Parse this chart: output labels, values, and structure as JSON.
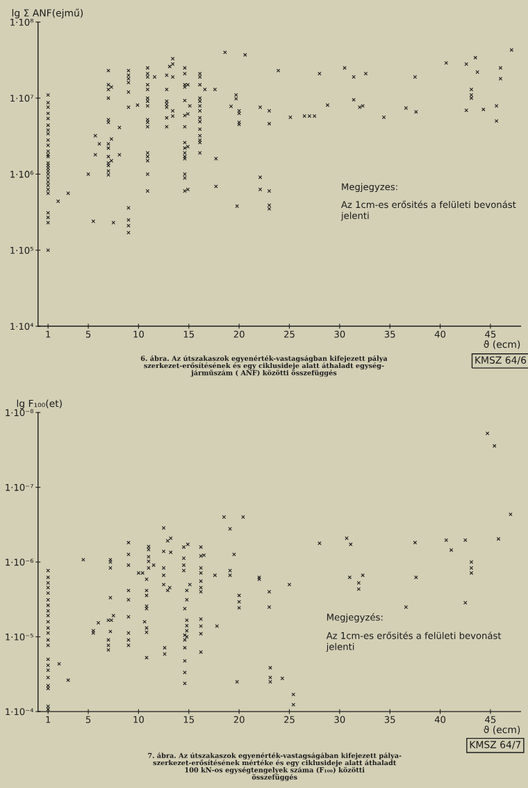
{
  "chart_data": [
    {
      "type": "scatter",
      "xlabel": "ϑ (ecm)",
      "ylabel": "lg Σ ANF(ejmű)",
      "color": "#1c1c1c",
      "marker": "cross",
      "log": true,
      "xlim": [
        0,
        48
      ],
      "xticks": [
        1,
        5,
        10,
        15,
        20,
        25,
        30,
        35,
        40,
        45
      ],
      "ylim": [
        10000,
        100000000
      ],
      "yticks": [
        {
          "value": 10000,
          "label": "1·10⁴"
        },
        {
          "value": 100000,
          "label": "1·10⁵"
        },
        {
          "value": 1000000,
          "label": "1·10⁶"
        },
        {
          "value": 10000000,
          "label": "1·10⁷"
        },
        {
          "value": 100000000,
          "label": "1·10⁸"
        }
      ],
      "x": [
        1,
        1,
        1,
        1,
        1,
        1,
        1,
        1,
        1,
        1,
        1,
        1,
        1,
        1,
        1,
        1,
        1,
        1,
        1,
        1,
        1,
        1,
        1,
        1,
        1,
        1,
        1,
        2,
        3,
        5,
        5.5,
        5.7,
        5.7,
        6.1,
        7,
        7,
        7,
        7,
        7,
        7,
        7,
        7,
        7,
        7,
        7,
        7,
        7,
        7.3,
        7.3,
        7.3,
        7.5,
        8.1,
        8.1,
        9,
        9,
        9,
        9,
        9,
        9,
        9,
        9,
        9,
        9,
        9.9,
        10.9,
        10.9,
        10.9,
        10.9,
        10.9,
        10.9,
        10.9,
        10.9,
        10.9,
        10.9,
        10.9,
        10.9,
        10.9,
        10.9,
        10.9,
        10.9,
        11.6,
        12.8,
        12.8,
        12.8,
        12.8,
        12.8,
        12.8,
        12.8,
        13.1,
        13.4,
        13.4,
        13.4,
        13.4,
        13.4,
        14.6,
        14.6,
        14.6,
        14.6,
        14.6,
        14.6,
        14.6,
        14.6,
        14.6,
        14.6,
        14.6,
        14.6,
        14.6,
        14.6,
        14.6,
        14.9,
        14.9,
        14.9,
        14.9,
        15.1,
        16.1,
        16.1,
        16.1,
        16.1,
        16.1,
        16.1,
        16.1,
        16.1,
        16.1,
        16.1,
        16.1,
        16.1,
        16.1,
        16.1,
        16.6,
        17.6,
        17.7,
        17.7,
        18.6,
        19.2,
        19.7,
        19.7,
        19.8,
        20,
        20,
        20,
        20,
        20.6,
        22.1,
        22.1,
        22.1,
        23,
        23,
        23,
        23,
        23,
        23.9,
        25.1,
        26.5,
        27,
        27.5,
        28,
        28.8,
        30.5,
        31.4,
        31.4,
        32,
        32.3,
        32.6,
        34.4,
        36.6,
        37.5,
        37.6,
        40.6,
        42.6,
        42.6,
        43.1,
        43.1,
        43.1,
        43.5,
        43.7,
        44.3,
        45.6,
        45.6,
        46,
        46,
        47.1
      ],
      "values": [
        11000000.0,
        8700000.0,
        7600000.0,
        6300000.0,
        5400000.0,
        4400000.0,
        3800000.0,
        3400000.0,
        2800000.0,
        2400000.0,
        2000000.0,
        1800000.0,
        1700000.0,
        1400000.0,
        1300000.0,
        1200000.0,
        1100000.0,
        1000000.0,
        890000.0,
        790000.0,
        710000.0,
        630000.0,
        560000.0,
        310000.0,
        270000.0,
        230000.0,
        100000.0,
        440000.0,
        560000.0,
        1000000.0,
        240000.0,
        3200000.0,
        1800000.0,
        2500000.0,
        23000000.0,
        15000000.0,
        13000000.0,
        10000000.0,
        5200000.0,
        4800000.0,
        2500000.0,
        2200000.0,
        1700000.0,
        1400000.0,
        1300000.0,
        1100000.0,
        980000.0,
        14000000.0,
        2900000.0,
        1500000.0,
        230000.0,
        4100000.0,
        1800000.0,
        23000000.0,
        20000000.0,
        18000000.0,
        16000000.0,
        12000000.0,
        7600000.0,
        360000.0,
        250000.0,
        210000.0,
        170000.0,
        8100000.0,
        25000000.0,
        21000000.0,
        19000000.0,
        15000000.0,
        13000000.0,
        10000000.0,
        9100000.0,
        7900000.0,
        5200000.0,
        4800000.0,
        4200000.0,
        1900000.0,
        1700000.0,
        1500000.0,
        1000000.0,
        600000.0,
        19000000.0,
        20000000.0,
        13000000.0,
        9100000.0,
        8300000.0,
        7600000.0,
        5500000.0,
        4200000.0,
        26000000.0,
        33000000.0,
        28000000.0,
        19000000.0,
        6800000.0,
        5800000.0,
        25000000.0,
        21000000.0,
        15000000.0,
        14000000.0,
        9300000.0,
        5900000.0,
        4200000.0,
        2600000.0,
        2200000.0,
        1900000.0,
        1700000.0,
        1600000.0,
        1000000.0,
        890000.0,
        600000.0,
        15000000.0,
        6200000.0,
        2300000.0,
        630000.0,
        7900000.0,
        21000000.0,
        19000000.0,
        15000000.0,
        10000000.0,
        9100000.0,
        7900000.0,
        6800000.0,
        5500000.0,
        4900000.0,
        3900000.0,
        3200000.0,
        2800000.0,
        2600000.0,
        1900000.0,
        13000000.0,
        13000000.0,
        1600000.0,
        690000.0,
        40000000.0,
        7800000.0,
        11000000.0,
        9800000.0,
        380000.0,
        6800000.0,
        6300000.0,
        4800000.0,
        4500000.0,
        37000000.0,
        7600000.0,
        910000.0,
        630000.0,
        6800000.0,
        4600000.0,
        600000.0,
        390000.0,
        350000.0,
        23000000.0,
        5600000.0,
        5800000.0,
        5800000.0,
        5800000.0,
        21000000.0,
        8100000.0,
        25000000.0,
        19000000.0,
        9500000.0,
        7600000.0,
        7900000.0,
        21000000.0,
        5600000.0,
        7400000.0,
        19000000.0,
        6600000.0,
        29000000.0,
        28000000.0,
        6900000.0,
        13000000.0,
        11000000.0,
        10000000.0,
        34000000.0,
        22000000.0,
        7100000.0,
        7900000.0,
        5000000.0,
        25000000.0,
        18000000.0,
        43000000.0
      ],
      "annotations": [
        "Megjegyzes:",
        "Az 1cm-es erősités a felületi bevonást\njelenti",
        "KMSZ 64/6",
        "6. ábra. Az útszakaszok egyenérték-vastagságban kifejezett pálya\nszerkezet-erősítésének és egy ciklusideje alatt áthaladt egység-\njárműszám ( ANF) közötti összefüggés"
      ]
    },
    {
      "type": "scatter",
      "xlabel": "ϑ (ecm)",
      "ylabel": "lg F₁₀₀(et)",
      "color": "#1c1c1c",
      "marker": "cross",
      "log": true,
      "xlim": [
        0,
        48
      ],
      "xticks": [
        1,
        5,
        10,
        15,
        20,
        25,
        30,
        35,
        40,
        45
      ],
      "ylim": [
        0.0001,
        1e-08
      ],
      "yticks": [
        {
          "value": 0.0001,
          "label": "1·10⁻⁴"
        },
        {
          "value": 1e-05,
          "label": "1·10⁻⁵"
        },
        {
          "value": 1e-06,
          "label": "1·10⁻⁶"
        },
        {
          "value": 1e-07,
          "label": "1·10⁻⁷"
        },
        {
          "value": 1e-08,
          "label": "1·10⁻⁸"
        }
      ],
      "x": [
        1,
        1,
        1,
        1,
        1,
        1,
        1,
        1,
        1,
        1,
        1,
        1,
        1,
        1,
        1,
        1,
        1,
        1,
        1,
        1,
        1,
        1,
        2.1,
        3,
        4.5,
        5.5,
        5.5,
        6,
        7,
        7,
        7,
        7,
        7.2,
        7.2,
        7.2,
        7.2,
        7.2,
        7.3,
        7.5,
        9,
        9,
        9,
        9,
        9,
        9,
        9,
        9,
        9,
        10,
        10.4,
        10.6,
        10.8,
        10.8,
        10.8,
        10.8,
        10.8,
        10.8,
        10.8,
        10.8,
        11,
        11,
        11,
        11,
        11,
        11.5,
        12.5,
        12.5,
        12.5,
        12.5,
        12.5,
        12.6,
        12.6,
        12.9,
        12.9,
        13.1,
        13.2,
        13.2,
        14.5,
        14.5,
        14.5,
        14.5,
        14.6,
        14.6,
        14.6,
        14.6,
        14.6,
        14.6,
        14.6,
        14.8,
        14.8,
        14.8,
        14.8,
        14.8,
        14.8,
        14.9,
        15.1,
        16.2,
        16.2,
        16.2,
        16.2,
        16.2,
        16.2,
        16.2,
        16.2,
        16.2,
        16.2,
        16.2,
        16.5,
        17.6,
        17.8,
        18.5,
        19.1,
        19.1,
        19.1,
        19.5,
        19.8,
        20,
        20,
        20,
        20.4,
        22,
        22,
        23,
        23,
        23.1,
        23.1,
        23.1,
        24.3,
        25,
        25.4,
        25.4,
        28,
        30.7,
        31.1,
        31,
        31.9,
        31.9,
        32.3,
        36.6,
        37.5,
        37.6,
        40.6,
        41.1,
        42.5,
        42.5,
        43.1,
        43.1,
        43.1,
        44.7,
        45.4,
        45.8,
        47
      ],
      "values": [
        1.3e-06,
        1.6e-06,
        1.9e-06,
        2.2e-06,
        2.6e-06,
        3.2e-06,
        3.8e-06,
        4.5e-06,
        5.2e-06,
        6.3e-06,
        7.6e-06,
        8.9e-06,
        1.1e-05,
        1.3e-05,
        2e-05,
        2.4e-05,
        2.8e-05,
        3.5e-05,
        4.5e-05,
        4.9e-05,
        8.5e-05,
        9.3e-05,
        2.3e-05,
        3.8e-05,
        9.3e-07,
        8.3e-06,
        8.9e-06,
        6.5e-06,
        6e-06,
        1.1e-05,
        1.3e-05,
        1.5e-05,
        9.3e-07,
        1e-06,
        1.2e-06,
        3e-06,
        8.5e-06,
        6e-06,
        5.2e-06,
        5.5e-07,
        7.9e-07,
        1.1e-06,
        2.4e-06,
        3.2e-06,
        5.4e-06,
        8.9e-06,
        1.1e-05,
        1.3e-05,
        1.4e-06,
        1.4e-06,
        6.3e-06,
        1.7e-06,
        2.4e-06,
        2.8e-06,
        3.9e-06,
        4.2e-06,
        7.6e-06,
        8.7e-06,
        1.9e-05,
        6.2e-07,
        6.8e-07,
        8.5e-07,
        9.8e-07,
        1.2e-06,
        1.1e-06,
        3.5e-07,
        7.2e-07,
        1.2e-06,
        1.5e-06,
        2e-06,
        1.4e-05,
        1.7e-05,
        5.2e-07,
        2.4e-06,
        2.2e-06,
        4.8e-07,
        7.4e-07,
        6.3e-07,
        8.9e-07,
        1.1e-06,
        1.3e-06,
        4.2e-06,
        9.5e-06,
        1.1e-05,
        1.4e-05,
        2.1e-05,
        3e-05,
        4.2e-05,
        2.4e-06,
        3.2e-06,
        6e-06,
        7.1e-06,
        8.3e-06,
        1e-05,
        5.8e-07,
        2e-06,
        6.3e-07,
        8.3e-07,
        1.2e-06,
        1.4e-06,
        1.8e-06,
        2.2e-06,
        2.5e-06,
        5.8e-06,
        7.2e-06,
        9.1e-06,
        1.6e-05,
        8.1e-07,
        1.5e-06,
        7.2e-06,
        2.5e-07,
        3.6e-07,
        1.3e-06,
        1.5e-06,
        7.9e-07,
        4e-05,
        2.8e-06,
        3.4e-06,
        4.1e-06,
        2.5e-07,
        1.6e-06,
        1.7e-06,
        2.5e-06,
        4e-06,
        2.6e-05,
        3.5e-05,
        4e-05,
        3.6e-05,
        2e-06,
        5.9e-05,
        8.1e-05,
        5.6e-07,
        4.8e-07,
        5.8e-07,
        1.6e-06,
        1.9e-06,
        2.3e-06,
        1.5e-06,
        4e-06,
        5.5e-07,
        1.6e-06,
        5.1e-07,
        6.9e-07,
        5.1e-07,
        3.5e-06,
        1e-06,
        1.2e-06,
        1.4e-06,
        1.9e-08,
        2.8e-08,
        4.9e-07,
        2.3e-07
      ],
      "annotations": [
        "Megjegyzés:",
        "Az 1cm-es erősités a felületi bevonást\njelenti",
        "KMSZ 64/7",
        "7. ábra. Az útszakaszok egyenérték-vastagságában kifejezett pálya-\nszerkezet-erősítésének mértéke és egy ciklusideje alatt áthaladt\n100 kN-os egységtengelyek száma (F₁₀₀) közötti\nösszefüggés"
      ]
    }
  ]
}
